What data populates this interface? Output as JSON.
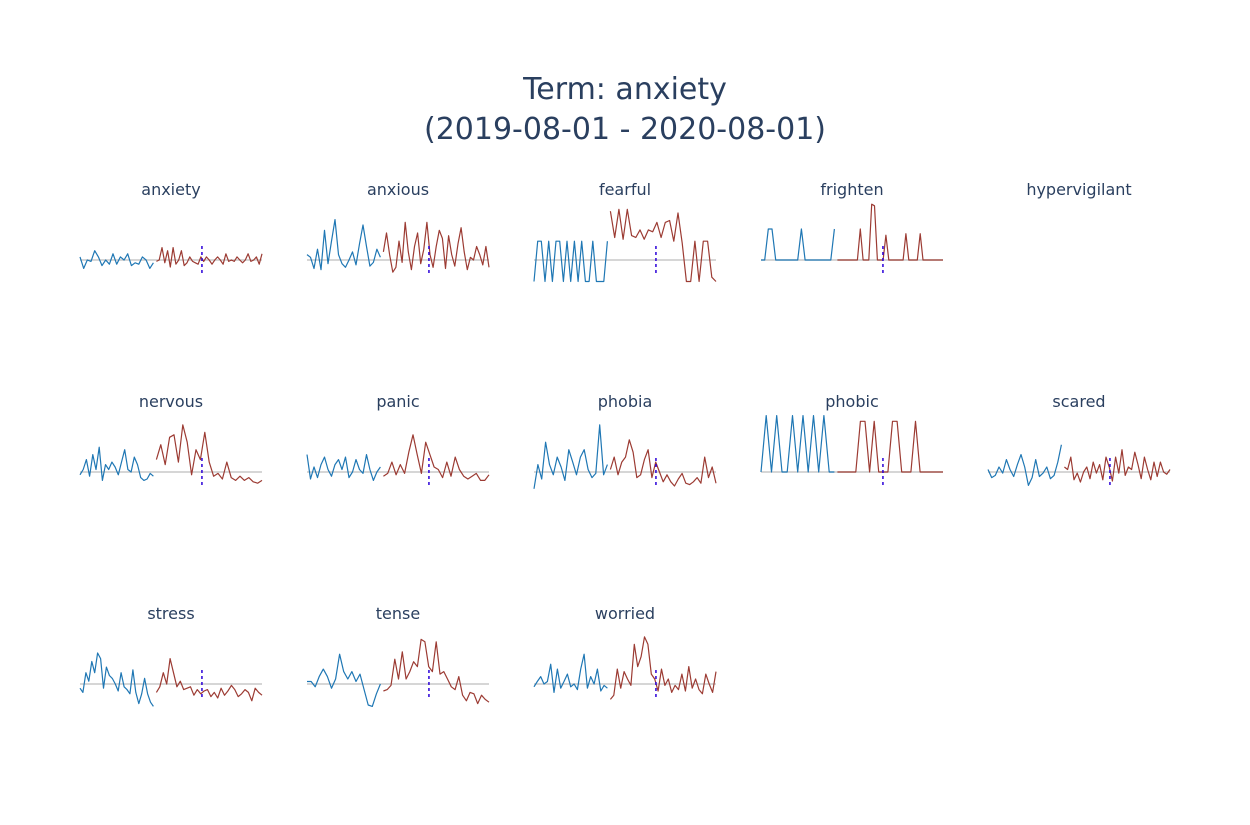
{
  "figure": {
    "title_line1": "Term: anxiety",
    "title_line2": "(2019-08-01 - 2020-08-01)"
  },
  "colors": {
    "before": "#1f77b4",
    "after": "#9c3b33",
    "baseline": "#c8c8c8",
    "event_marker": "#2b00d8",
    "text": "#2a3f5f"
  },
  "chart_data": {
    "type": "line",
    "grid": false,
    "legend": "none",
    "subplots": [
      {
        "name": "anxiety",
        "ylim": [
          -2,
          2
        ],
        "before": [
          0.1,
          -0.6,
          0.0,
          -0.1,
          0.3,
          0.1,
          -0.4,
          0.0,
          -0.3,
          0.2,
          -0.3,
          0.1,
          0.0,
          0.2,
          -0.4,
          -0.2,
          -0.3,
          0.1,
          0.0,
          -0.6,
          -0.2
        ],
        "after": [
          -0.1,
          0.0,
          0.4,
          -0.2,
          0.3,
          -0.5,
          0.4,
          -0.3,
          0.0,
          0.3,
          -0.4,
          -0.2,
          0.1,
          -0.1,
          -0.2,
          -0.3,
          0.1,
          -0.1,
          0.1,
          0.0,
          -0.3,
          0.0,
          0.1,
          0.0,
          -0.3,
          0.2,
          -0.1,
          0.0,
          -0.1,
          0.1,
          0.0,
          -0.2,
          0.0,
          0.2,
          -0.1,
          0.0,
          0.1,
          -0.3,
          0.2
        ],
        "event_x": 0.67
      },
      {
        "name": "anxious",
        "ylim": [
          -2.3,
          2.3
        ],
        "before": [
          0.2,
          0.1,
          -0.7,
          0.4,
          -0.8,
          1.1,
          -0.3,
          0.7,
          1.5,
          0.2,
          -0.3,
          -0.6,
          0.0,
          0.3,
          -0.4,
          0.6,
          1.3,
          0.5,
          -0.5,
          -0.2,
          0.4,
          0.1
        ],
        "after": [
          0.3,
          1.0,
          0.2,
          -1.0,
          -0.6,
          0.7,
          -0.2,
          1.4,
          0.3,
          -0.8,
          0.5,
          1.0,
          -0.3,
          0.4,
          1.4,
          0.2,
          -0.6,
          0.5,
          1.1,
          0.8,
          -0.7,
          0.9,
          0.2,
          -0.5,
          0.6,
          1.2,
          0.3,
          -0.8,
          0.1,
          0.0,
          0.5,
          0.2,
          -0.4,
          0.5,
          -0.6
        ],
        "event_x": 0.67
      },
      {
        "name": "fearful",
        "ylim": [
          -1.3,
          3.3
        ],
        "before": [
          -1,
          1,
          1,
          -1,
          1,
          -1,
          1,
          1,
          -1,
          1,
          -1,
          1,
          -1,
          1,
          -1,
          -1,
          1,
          -1,
          -1,
          -1,
          1
        ],
        "after": [
          2.6,
          1.2,
          2.7,
          1.1,
          2.7,
          1.3,
          1.2,
          1.6,
          1.1,
          1.6,
          1.5,
          2.0,
          1.2,
          2.0,
          2.1,
          1.0,
          2.5,
          0.9,
          -1.0,
          -1.0,
          1.0,
          -1.0,
          1.0,
          1.0,
          -0.8,
          -1.0
        ],
        "event_x": 0.67
      },
      {
        "name": "frighten",
        "ylim": [
          -0.5,
          4.0
        ],
        "before": [
          0,
          0,
          2,
          2,
          0,
          0,
          0,
          0,
          0,
          0,
          0,
          2,
          0,
          0,
          0,
          0,
          0,
          0,
          0,
          0,
          2
        ],
        "after": [
          0,
          0,
          0,
          0,
          0,
          0,
          0,
          0,
          2,
          0,
          0,
          0,
          3.6,
          3.5,
          0,
          0,
          0,
          1.6,
          0,
          0,
          0,
          0,
          0,
          0,
          1.7,
          0,
          0,
          0,
          0,
          1.7,
          0,
          0,
          0,
          0,
          0,
          0,
          0,
          0
        ],
        "event_x": 0.67
      },
      {
        "name": "hypervigilant",
        "ylim": [
          -1,
          1
        ],
        "before": [],
        "after": [],
        "event_x": null
      },
      {
        "name": "nervous",
        "ylim": [
          -2,
          2.5
        ],
        "before": [
          -0.2,
          0.1,
          0.5,
          -0.3,
          0.7,
          0.1,
          1.0,
          -0.6,
          0.3,
          0.1,
          0.4,
          0.2,
          -0.2,
          0.4,
          0.9,
          0.1,
          0.0,
          0.6,
          0.3,
          -0.4,
          -0.6,
          -0.5,
          -0.1,
          -0.3
        ],
        "after": [
          0.5,
          1.1,
          0.3,
          1.4,
          1.5,
          0.4,
          1.9,
          1.2,
          -0.2,
          0.9,
          0.5,
          1.6,
          0.4,
          -0.3,
          -0.1,
          -0.5,
          0.4,
          -0.4,
          -0.6,
          -0.3,
          -0.6,
          -0.4,
          -0.7,
          -0.8,
          -0.6
        ],
        "event_x": 0.67
      },
      {
        "name": "panic",
        "ylim": [
          -2,
          2.5
        ],
        "before": [
          0.7,
          -0.5,
          0.2,
          -0.4,
          0.3,
          0.6,
          0.1,
          -0.3,
          0.3,
          0.5,
          0.1,
          0.6,
          -0.4,
          0.0,
          0.5,
          0.1,
          -0.1,
          0.7,
          0.1,
          -0.6,
          0.0,
          0.2
        ],
        "after": [
          -0.3,
          -0.1,
          0.4,
          -0.2,
          0.3,
          -0.1,
          0.8,
          1.5,
          0.7,
          -0.1,
          1.2,
          0.7,
          0.2,
          0.1,
          -0.4,
          0.4,
          -0.3,
          0.6,
          0.1,
          -0.3,
          -0.5,
          -0.3,
          -0.1,
          -0.6,
          -0.6,
          -0.2
        ],
        "event_x": 0.67
      },
      {
        "name": "phobia",
        "ylim": [
          -2,
          2.5
        ],
        "before": [
          -1.2,
          0.3,
          -0.5,
          1.2,
          0.3,
          -0.2,
          0.6,
          0.2,
          -0.6,
          0.9,
          0.4,
          -0.2,
          0.6,
          0.9,
          0.1,
          -0.4,
          -0.1,
          1.9,
          -0.2,
          0.3
        ],
        "after": [
          0.1,
          0.6,
          -0.2,
          0.4,
          0.6,
          1.3,
          0.8,
          -0.4,
          -0.2,
          0.5,
          0.9,
          -0.4,
          0.4,
          0.0,
          -0.7,
          -0.2,
          -0.7,
          -1.0,
          -0.5,
          -0.1,
          -0.8,
          -0.9,
          -0.7,
          -0.4,
          -0.8,
          0.6,
          -0.4,
          0.2,
          -0.8
        ],
        "event_x": 0.67
      },
      {
        "name": "phobic",
        "ylim": [
          -0.3,
          3.3
        ],
        "before": [
          0,
          3,
          0,
          3,
          0,
          0,
          3,
          0,
          3,
          0,
          3,
          0,
          3,
          0,
          0
        ],
        "after": [
          0,
          0,
          0,
          0,
          0,
          2.7,
          2.7,
          0,
          2.7,
          0,
          0,
          0,
          2.7,
          2.7,
          0,
          0,
          0,
          2.7,
          0,
          0,
          0,
          0,
          0,
          0
        ],
        "event_x": 0.67
      },
      {
        "name": "scared",
        "ylim": [
          -2.5,
          2.5
        ],
        "before": [
          0.1,
          -0.5,
          -0.3,
          0.2,
          -0.1,
          0.5,
          0.1,
          -0.4,
          0.3,
          0.7,
          0.2,
          -1.2,
          -0.5,
          0.5,
          -0.4,
          -0.1,
          0.2,
          -0.6,
          -0.3,
          0.4,
          1.1
        ],
        "after": [
          0.2,
          0.1,
          0.6,
          -0.7,
          -0.1,
          -0.9,
          0.0,
          0.2,
          -0.6,
          0.4,
          -0.1,
          0.3,
          -0.7,
          0.6,
          0.2,
          -0.8,
          0.6,
          -0.1,
          0.9,
          -0.3,
          0.2,
          0.1,
          0.8,
          0.3,
          -0.6,
          0.6,
          0.1,
          -0.7,
          0.4,
          -0.4,
          0.4,
          0.0,
          -0.2,
          0.1
        ],
        "event_x": 0.67
      },
      {
        "name": "stress",
        "ylim": [
          -2,
          2.2
        ],
        "before": [
          -0.3,
          -0.6,
          0.4,
          0.1,
          0.8,
          0.4,
          1.1,
          0.9,
          -0.3,
          0.6,
          0.3,
          0.2,
          0.0,
          -0.5,
          0.4,
          -0.2,
          -0.4,
          -0.7,
          0.5,
          -0.6,
          -1.4,
          -0.7,
          0.2,
          -0.7,
          -1.3,
          -1.6
        ],
        "after": [
          -0.6,
          -0.2,
          0.4,
          0.0,
          0.9,
          0.4,
          -0.2,
          0.1,
          -0.4,
          -0.3,
          -0.2,
          -0.8,
          -0.4,
          -0.7,
          -0.5,
          -0.4,
          -0.9,
          -0.6,
          -1.0,
          -0.3,
          -0.8,
          -0.5,
          -0.1,
          -0.4,
          -0.9,
          -0.7,
          -0.4,
          -0.6,
          -1.2,
          -0.3,
          -0.6,
          -0.8
        ],
        "event_x": 0.67
      },
      {
        "name": "tense",
        "ylim": [
          -2,
          2.5
        ],
        "before": [
          0.1,
          0.1,
          -0.2,
          0.3,
          0.6,
          0.3,
          -0.3,
          0.2,
          1.2,
          0.5,
          0.2,
          0.5,
          0.1,
          0.4,
          -0.4,
          -1.5,
          -1.6,
          -0.7,
          0.0
        ],
        "after": [
          -0.5,
          -0.4,
          -0.1,
          1.0,
          0.2,
          1.3,
          0.2,
          0.5,
          0.9,
          0.7,
          1.8,
          1.7,
          0.7,
          0.5,
          1.7,
          0.4,
          0.5,
          0.2,
          -0.2,
          -0.4,
          0.3,
          -0.8,
          -1.2,
          -0.6,
          -0.7,
          -1.4,
          -0.8,
          -1.1,
          -1.3
        ],
        "event_x": 0.67
      },
      {
        "name": "worried",
        "ylim": [
          -2,
          2.5
        ],
        "before": [
          -0.2,
          0.1,
          0.3,
          0.0,
          0.1,
          0.8,
          -0.6,
          0.6,
          -0.3,
          0.1,
          0.4,
          -0.2,
          0.0,
          -0.4,
          0.6,
          1.2,
          -0.3,
          0.3,
          0.0,
          0.6,
          -0.5,
          -0.1,
          -0.3
        ],
        "after": [
          -1.1,
          -0.8,
          0.6,
          -0.3,
          0.5,
          0.2,
          -0.1,
          1.6,
          0.7,
          1.1,
          1.9,
          1.6,
          0.4,
          0.2,
          -0.5,
          0.6,
          -0.1,
          0.2,
          -0.6,
          -0.1,
          -0.4,
          0.4,
          -0.5,
          0.7,
          -0.3,
          0.2,
          -0.4,
          -0.7,
          0.4,
          0.0,
          -0.6,
          0.5
        ],
        "event_x": 0.67
      }
    ]
  }
}
